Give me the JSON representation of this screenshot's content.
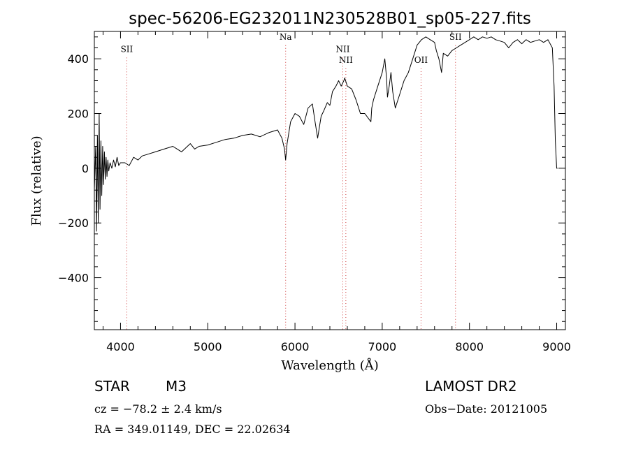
{
  "chart_data": {
    "type": "line",
    "title": "spec-56206-EG232011N230528B01_sp05-227.fits",
    "xlabel": "Wavelength (Å)",
    "ylabel": "Flux (relative)",
    "xlim": [
      3700,
      9100
    ],
    "ylim": [
      -590,
      500
    ],
    "xticks": [
      4000,
      5000,
      6000,
      7000,
      8000,
      9000
    ],
    "yticks": [
      -400,
      -200,
      0,
      200,
      400
    ],
    "grid": false,
    "series": [
      {
        "x": [
          3700,
          3715,
          3725,
          3735,
          3745,
          3755,
          3765,
          3775,
          3785,
          3795,
          3805,
          3815,
          3825,
          3835,
          3845,
          3855,
          3865,
          3880,
          3900,
          3920,
          3940,
          3960,
          3980,
          4000,
          4050,
          4100,
          4150,
          4200,
          4250,
          4300,
          4400,
          4500,
          4600,
          4700,
          4800,
          4850,
          4900,
          5000,
          5100,
          5200,
          5300,
          5400,
          5500,
          5600,
          5700,
          5800,
          5850,
          5880,
          5893,
          5910,
          5950,
          6000,
          6050,
          6100,
          6150,
          6200,
          6230,
          6260,
          6280,
          6300,
          6330,
          6370,
          6400,
          6430,
          6470,
          6500,
          6530,
          6560,
          6570,
          6600,
          6650,
          6700,
          6750,
          6800,
          6870,
          6880,
          6900,
          6950,
          7000,
          7030,
          7050,
          7060,
          7080,
          7100,
          7120,
          7150,
          7200,
          7250,
          7300,
          7350,
          7400,
          7450,
          7500,
          7550,
          7600,
          7620,
          7650,
          7680,
          7700,
          7750,
          7800,
          7850,
          7900,
          7950,
          8000,
          8050,
          8100,
          8150,
          8200,
          8250,
          8300,
          8350,
          8400,
          8450,
          8500,
          8550,
          8600,
          8650,
          8700,
          8750,
          8800,
          8850,
          8900,
          8950,
          8970,
          8985,
          9000,
          9010
        ],
        "y": [
          -80,
          80,
          -230,
          120,
          -200,
          200,
          -150,
          100,
          -100,
          80,
          -60,
          60,
          -40,
          40,
          -30,
          30,
          -10,
          20,
          0,
          30,
          5,
          40,
          10,
          20,
          20,
          10,
          40,
          30,
          45,
          50,
          60,
          70,
          80,
          60,
          90,
          70,
          80,
          85,
          95,
          105,
          110,
          120,
          125,
          115,
          130,
          140,
          110,
          70,
          30,
          90,
          170,
          200,
          190,
          160,
          220,
          235,
          170,
          110,
          150,
          190,
          210,
          240,
          230,
          280,
          300,
          320,
          300,
          320,
          330,
          300,
          290,
          250,
          200,
          200,
          170,
          220,
          250,
          300,
          350,
          400,
          330,
          260,
          300,
          350,
          280,
          220,
          270,
          320,
          350,
          400,
          450,
          470,
          480,
          470,
          460,
          430,
          400,
          350,
          420,
          410,
          430,
          440,
          450,
          460,
          470,
          480,
          470,
          480,
          475,
          480,
          470,
          465,
          460,
          440,
          460,
          470,
          455,
          470,
          460,
          465,
          470,
          460,
          470,
          440,
          300,
          100,
          0,
          0
        ]
      }
    ],
    "line_markers": [
      {
        "label": "SII",
        "x": 4072,
        "label_y": 425
      },
      {
        "label": "Na",
        "x": 5893,
        "label_y": 470
      },
      {
        "label": "NII",
        "x": 6548,
        "label_y": 425
      },
      {
        "label": "NII",
        "x": 6583,
        "label_y": 385
      },
      {
        "label": "OII",
        "x": 7445,
        "label_y": 385
      },
      {
        "label": "SII",
        "x": 7840,
        "label_y": 470
      }
    ]
  },
  "info": {
    "object_type": "STAR",
    "subclass": "M3",
    "survey": "LAMOST DR2",
    "cz": "cz = −78.2 ± 2.4 km/s",
    "obs_date": "Obs−Date: 20121005",
    "coords": "RA = 349.01149, DEC =  22.02634"
  }
}
